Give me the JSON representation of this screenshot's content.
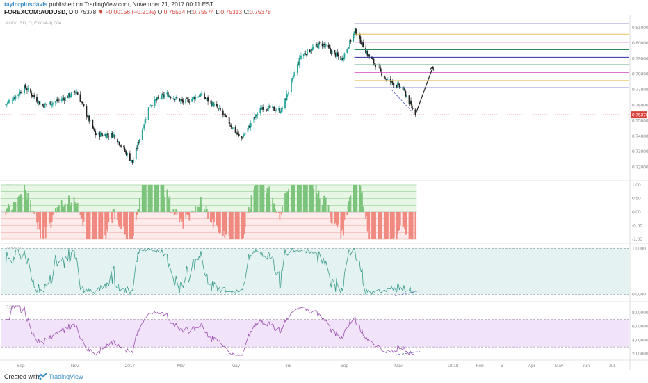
{
  "header": {
    "author": "taylorplusdavis",
    "published_text": "published on TradingView.com, November 21, 2017 00:11 EST",
    "symbol": "FOREXCOM:AUDUSD, D",
    "last": "0.75378",
    "change": "−0.00156 (−0.21%)",
    "o_label": "O:",
    "o": "0.75534",
    "h_label": "H:",
    "h": "0.75574",
    "l_label": "L:",
    "l": "0.75313",
    "c_label": "C:",
    "c": "0.75378"
  },
  "footer": {
    "created": "Created with",
    "brand": "TradingView"
  },
  "chart_data": [
    {
      "type": "candlestick",
      "pane": "price",
      "title": "AUD/USD, D, FXCM-9) 004",
      "x_ticks": [
        "Sep",
        "Nov",
        "2017",
        "Mar",
        "May",
        "Jul",
        "Sep",
        "Nov",
        "2018",
        "Feb",
        "3",
        "Apr",
        "May",
        "Jun",
        "Jul"
      ],
      "y_ticks": [
        "0.81000",
        "0.80000",
        "0.79000",
        "0.78000",
        "0.77000",
        "0.76000",
        "0.75000",
        "0.74000",
        "0.73000",
        "0.72000"
      ],
      "y_range": [
        0.713,
        0.818
      ],
      "last_price": 0.75378,
      "last_price_label": "0.75378",
      "path_x": [
        "2016-08-15",
        "2016-09-06",
        "2016-09-25",
        "2016-10-14",
        "2016-11-03",
        "2016-11-24",
        "2016-12-15",
        "2017-01-05",
        "2017-01-24",
        "2017-02-12",
        "2017-03-04",
        "2017-03-23",
        "2017-04-14",
        "2017-05-07",
        "2017-05-31",
        "2017-06-22",
        "2017-07-14",
        "2017-08-06",
        "2017-08-29",
        "2017-09-13",
        "2017-09-28",
        "2017-10-18",
        "2017-11-06",
        "2017-11-20"
      ],
      "path_y": [
        0.7605,
        0.7715,
        0.7596,
        0.7631,
        0.7685,
        0.7412,
        0.7408,
        0.723,
        0.7601,
        0.7672,
        0.7618,
        0.7668,
        0.7564,
        0.738,
        0.7588,
        0.7565,
        0.7921,
        0.7998,
        0.7895,
        0.8079,
        0.7921,
        0.7768,
        0.7706,
        0.7538
      ],
      "fib_levels": [
        {
          "price": 0.8125,
          "color": "#2c2fa0"
        },
        {
          "price": 0.8058,
          "color": "#e6c05a"
        },
        {
          "price": 0.8006,
          "color": "#d946c8"
        },
        {
          "price": 0.7958,
          "color": "#2e8b57"
        },
        {
          "price": 0.7909,
          "color": "#2c2fa0"
        },
        {
          "price": 0.7861,
          "color": "#2e8b57"
        },
        {
          "price": 0.7811,
          "color": "#d946c8"
        },
        {
          "price": 0.7759,
          "color": "#e6c05a"
        },
        {
          "price": 0.7712,
          "color": "#2c2fa0"
        }
      ],
      "projection_arrow": {
        "from": [
          "2017-11-20",
          0.7538
        ],
        "to": [
          "2017-12-10",
          0.785
        ]
      },
      "up_color": "#26a69a",
      "down_color": "#222222"
    },
    {
      "type": "histogram",
      "pane": "oscillator",
      "title": "STO D",
      "y_ticks": [
        "1.00",
        "0.50",
        "0.00",
        "-0.50",
        "-1.00"
      ],
      "y_range": [
        -1.05,
        1.05
      ],
      "positive_color": "#7cc47c",
      "negative_color": "#f08a80"
    },
    {
      "type": "line",
      "pane": "williams",
      "title": "Will %R",
      "y_ticks": [
        "1.0000",
        "0.0000"
      ],
      "y_range": [
        -0.1,
        1.05
      ],
      "band": [
        0.0,
        1.0
      ],
      "line_color": "#3a9b8a",
      "band_color": "#e4f3f2"
    },
    {
      "type": "line",
      "pane": "rsi",
      "title": "RSI",
      "y_ticks": [
        "80.0000",
        "60.0000",
        "40.0000",
        "20.0000"
      ],
      "y_range": [
        15,
        92
      ],
      "band": [
        30,
        70
      ],
      "line_color": "#9b4fb0",
      "band_color": "#f1e3f9"
    }
  ]
}
